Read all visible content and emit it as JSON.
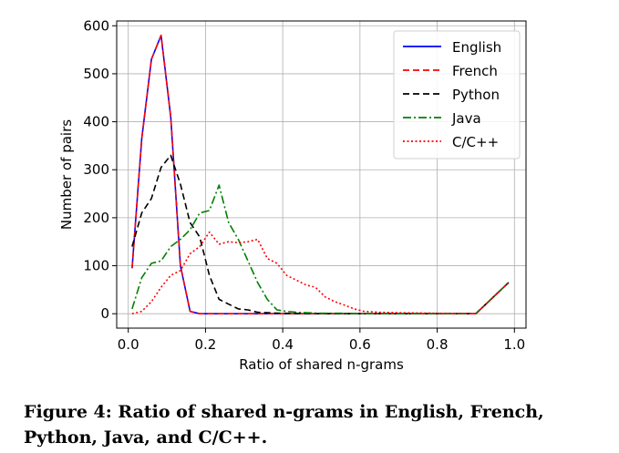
{
  "caption": "Figure 4: Ratio of shared n-grams in English, French, Python, Java, and C/C++.",
  "chart_data": {
    "type": "line",
    "title": "",
    "xlabel": "Ratio of shared n-grams",
    "ylabel": "Number of pairs",
    "xlim": [
      -0.03,
      1.03
    ],
    "ylim": [
      -30,
      610
    ],
    "xticks": [
      0.0,
      0.2,
      0.4,
      0.6,
      0.8,
      1.0
    ],
    "xtick_labels": [
      "0.0",
      "0.2",
      "0.4",
      "0.6",
      "0.8",
      "1.0"
    ],
    "yticks": [
      0,
      100,
      200,
      300,
      400,
      500,
      600
    ],
    "ytick_labels": [
      "0",
      "100",
      "200",
      "300",
      "400",
      "500",
      "600"
    ],
    "grid": true,
    "legend_position": "top-right",
    "series": [
      {
        "name": "English",
        "color": "#0000ff",
        "style": "solid",
        "x": [
          0.01,
          0.035,
          0.06,
          0.085,
          0.11,
          0.135,
          0.16,
          0.185,
          0.21,
          0.235,
          0.26,
          0.3,
          0.4,
          0.5,
          0.6,
          0.7,
          0.8,
          0.9,
          0.985
        ],
        "y": [
          95,
          365,
          530,
          580,
          410,
          100,
          5,
          0,
          0,
          0,
          0,
          0,
          0,
          0,
          0,
          0,
          0,
          0,
          65
        ]
      },
      {
        "name": "French",
        "color": "#ff0000",
        "style": "dashed",
        "x": [
          0.01,
          0.035,
          0.06,
          0.085,
          0.11,
          0.135,
          0.16,
          0.185,
          0.21,
          0.235,
          0.26,
          0.3,
          0.4,
          0.5,
          0.6,
          0.7,
          0.8,
          0.9,
          0.985
        ],
        "y": [
          95,
          365,
          530,
          580,
          410,
          100,
          5,
          0,
          0,
          0,
          0,
          0,
          0,
          0,
          0,
          0,
          0,
          0,
          65
        ]
      },
      {
        "name": "Python",
        "color": "#000000",
        "style": "dashed",
        "x": [
          0.01,
          0.035,
          0.06,
          0.085,
          0.11,
          0.135,
          0.16,
          0.185,
          0.21,
          0.235,
          0.26,
          0.285,
          0.31,
          0.335,
          0.36,
          0.4,
          0.5,
          0.6,
          0.7,
          0.8,
          0.9,
          0.985
        ],
        "y": [
          140,
          210,
          240,
          305,
          330,
          270,
          190,
          160,
          80,
          30,
          20,
          10,
          8,
          3,
          2,
          1,
          0,
          0,
          0,
          0,
          0,
          65
        ]
      },
      {
        "name": "Java",
        "color": "#008000",
        "style": "dashdot",
        "x": [
          0.01,
          0.035,
          0.06,
          0.085,
          0.11,
          0.135,
          0.16,
          0.185,
          0.21,
          0.235,
          0.26,
          0.285,
          0.31,
          0.335,
          0.36,
          0.385,
          0.41,
          0.435,
          0.46,
          0.5,
          0.55,
          0.6,
          0.7,
          0.8,
          0.9,
          0.985
        ],
        "y": [
          10,
          75,
          105,
          110,
          140,
          155,
          175,
          210,
          215,
          268,
          190,
          155,
          110,
          65,
          30,
          8,
          5,
          3,
          2,
          1,
          1,
          0,
          0,
          0,
          0,
          65
        ]
      },
      {
        "name": "C/C++",
        "color": "#ff0000",
        "style": "dotted",
        "x": [
          0.01,
          0.035,
          0.06,
          0.085,
          0.11,
          0.135,
          0.16,
          0.185,
          0.21,
          0.235,
          0.26,
          0.285,
          0.31,
          0.335,
          0.36,
          0.385,
          0.41,
          0.435,
          0.46,
          0.485,
          0.51,
          0.535,
          0.56,
          0.585,
          0.61,
          0.65,
          0.7,
          0.8,
          0.9,
          0.985
        ],
        "y": [
          0,
          5,
          25,
          55,
          80,
          90,
          125,
          140,
          170,
          145,
          150,
          148,
          150,
          155,
          115,
          105,
          80,
          70,
          60,
          55,
          35,
          25,
          18,
          10,
          5,
          3,
          2,
          1,
          0,
          65
        ]
      }
    ]
  }
}
